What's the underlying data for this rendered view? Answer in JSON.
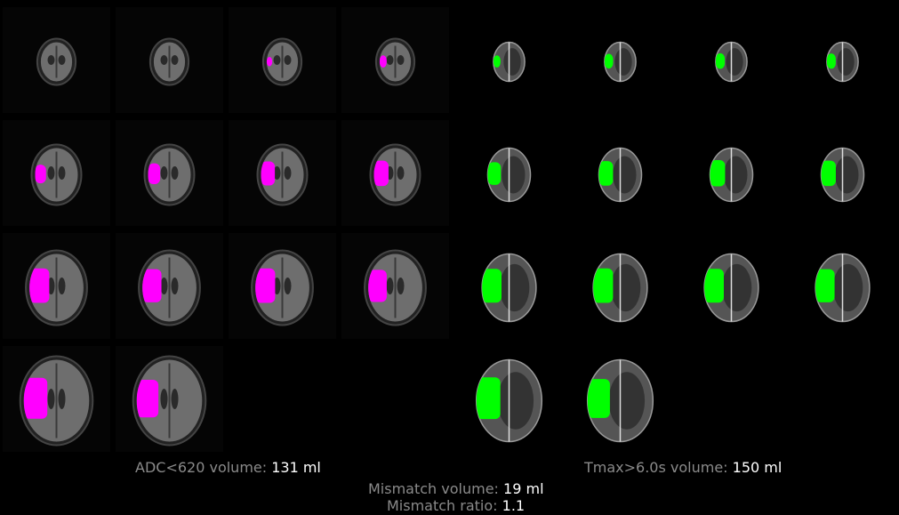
{
  "adc": {
    "label": "ADC<620 volume: ",
    "value": "131 ml",
    "lesion_color": "#ff00ff",
    "slices": [
      0,
      0,
      0.08,
      0.22,
      0.3,
      0.38,
      0.5,
      0.55,
      0.62,
      0.58,
      0.62,
      0.55,
      0.6,
      0.52
    ]
  },
  "tmax": {
    "label": "Tmax>6.0s volume: ",
    "value": "150 ml",
    "lesion_color": "#00ff00",
    "slices": [
      0.22,
      0.35,
      0.4,
      0.38,
      0.45,
      0.52,
      0.58,
      0.55,
      0.6,
      0.62,
      0.6,
      0.58,
      0.62,
      0.55
    ]
  },
  "mismatch": {
    "volume_label": "Mismatch volume: ",
    "volume_value": "19 ml",
    "ratio_label": "Mismatch ratio: ",
    "ratio_value": "1.1"
  }
}
